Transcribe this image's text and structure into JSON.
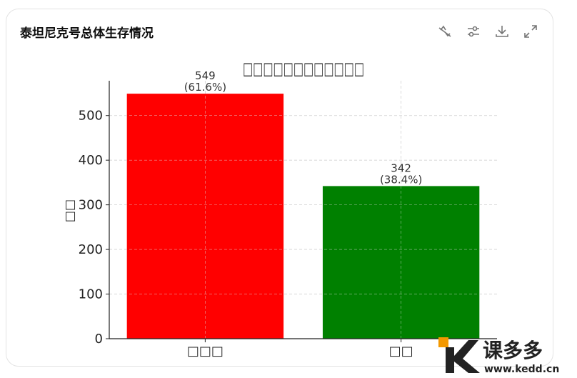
{
  "card": {
    "title": "泰坦尼克号总体生存情况"
  },
  "toolbar": [
    {
      "icon": "chart-off-icon",
      "label": "Switch to static chart"
    },
    {
      "icon": "sliders-icon",
      "label": "Customize"
    },
    {
      "icon": "download-icon",
      "label": "Download"
    },
    {
      "icon": "expand-icon",
      "label": "Expand"
    }
  ],
  "chart_data": {
    "type": "bar",
    "title": "□□□□□□□□□□□□",
    "xlabel": "",
    "ylabel": "□□",
    "categories": [
      "□□□",
      "□□"
    ],
    "values": [
      549,
      342
    ],
    "data_labels": [
      "549\n(61.6%)",
      "342\n(38.4%)"
    ],
    "colors": [
      "#ff0000",
      "#008000"
    ],
    "ylim": [
      0,
      578
    ],
    "yticks": [
      0,
      100,
      200,
      300,
      400,
      500
    ],
    "grid": true
  },
  "logo": {
    "brand": "课多多",
    "url_text": "www.kedd.cn"
  }
}
